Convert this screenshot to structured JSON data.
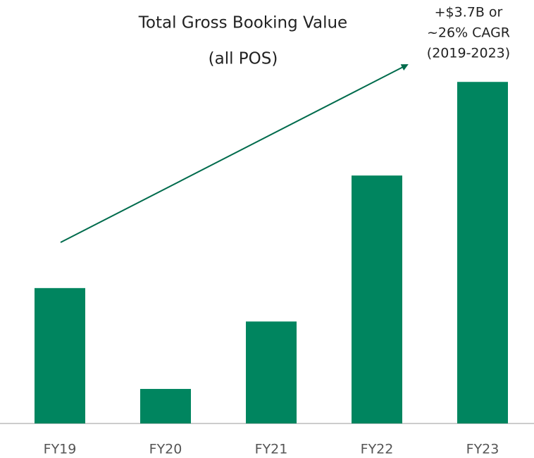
{
  "chart_data": {
    "type": "bar",
    "title": [
      "Total Gross Booking Value",
      "(all POS)"
    ],
    "annotation": [
      "+$3.7B or",
      "~26% CAGR",
      "(2019-2023)"
    ],
    "categories": [
      "FY19",
      "FY20",
      "FY21",
      "FY22",
      "FY23"
    ],
    "values": [
      2.43,
      0.62,
      1.83,
      4.45,
      6.13
    ],
    "color": "#00855f",
    "ylim": [
      0,
      7.6
    ]
  }
}
